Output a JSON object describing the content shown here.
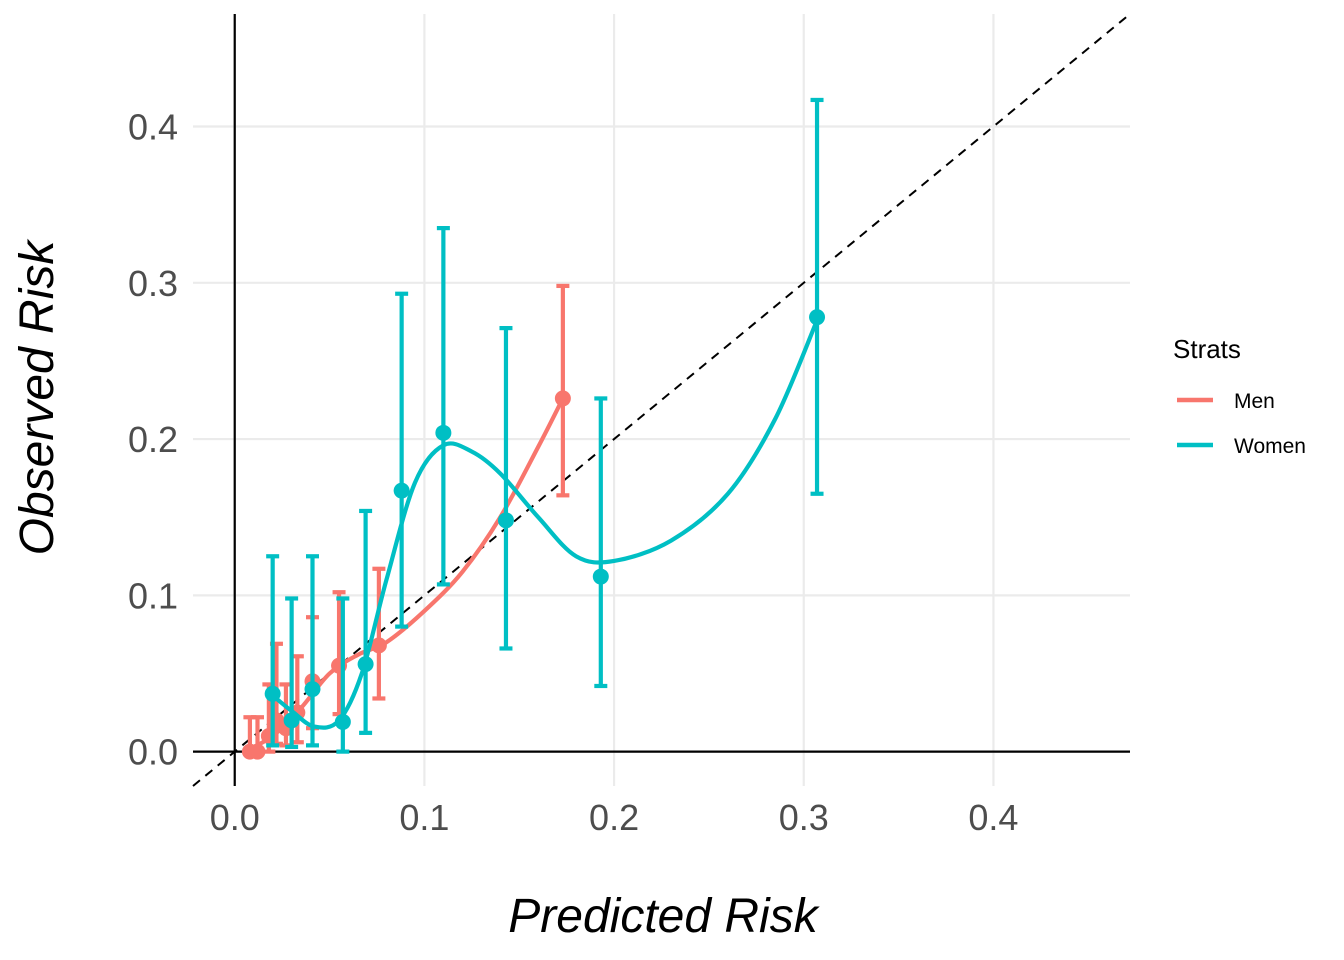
{
  "chart_data": {
    "type": "scatter",
    "title": "",
    "xlabel": "Predicted Risk",
    "ylabel": "Observed Risk",
    "xlim": [
      -0.022,
      0.472
    ],
    "ylim": [
      -0.022,
      0.472
    ],
    "xticks": [
      0.0,
      0.1,
      0.2,
      0.3,
      0.4
    ],
    "xtick_labels": [
      "0.0",
      "0.1",
      "0.2",
      "0.3",
      "0.4"
    ],
    "yticks": [
      0.0,
      0.1,
      0.2,
      0.3,
      0.4
    ],
    "ytick_labels": [
      "0.0",
      "0.1",
      "0.2",
      "0.3",
      "0.4"
    ],
    "reference_line": "y = x (dashed)",
    "grid": true,
    "legend": {
      "title": "Strats",
      "position": "right"
    },
    "series": [
      {
        "name": "Men",
        "color": "#F8766D",
        "points": [
          {
            "x": 0.008,
            "y": 0.0,
            "lo": 0.0,
            "hi": 0.022
          },
          {
            "x": 0.012,
            "y": 0.0,
            "lo": 0.0,
            "hi": 0.022
          },
          {
            "x": 0.018,
            "y": 0.01,
            "lo": 0.0,
            "hi": 0.043
          },
          {
            "x": 0.022,
            "y": 0.02,
            "lo": 0.005,
            "hi": 0.069
          },
          {
            "x": 0.027,
            "y": 0.015,
            "lo": 0.004,
            "hi": 0.043
          },
          {
            "x": 0.033,
            "y": 0.025,
            "lo": 0.006,
            "hi": 0.061
          },
          {
            "x": 0.041,
            "y": 0.045,
            "lo": 0.015,
            "hi": 0.086
          },
          {
            "x": 0.055,
            "y": 0.055,
            "lo": 0.024,
            "hi": 0.102
          },
          {
            "x": 0.076,
            "y": 0.068,
            "lo": 0.034,
            "hi": 0.117
          },
          {
            "x": 0.173,
            "y": 0.226,
            "lo": 0.164,
            "hi": 0.298
          }
        ],
        "smooth": [
          [
            0.005,
            0.0
          ],
          [
            0.02,
            0.01
          ],
          [
            0.035,
            0.028
          ],
          [
            0.05,
            0.05
          ],
          [
            0.065,
            0.062
          ],
          [
            0.08,
            0.07
          ],
          [
            0.1,
            0.09
          ],
          [
            0.12,
            0.115
          ],
          [
            0.14,
            0.15
          ],
          [
            0.16,
            0.195
          ],
          [
            0.173,
            0.226
          ]
        ]
      },
      {
        "name": "Women",
        "color": "#00BFC4",
        "points": [
          {
            "x": 0.02,
            "y": 0.037,
            "lo": 0.004,
            "hi": 0.125
          },
          {
            "x": 0.03,
            "y": 0.02,
            "lo": 0.003,
            "hi": 0.098
          },
          {
            "x": 0.041,
            "y": 0.04,
            "lo": 0.004,
            "hi": 0.125
          },
          {
            "x": 0.057,
            "y": 0.019,
            "lo": 0.0,
            "hi": 0.098
          },
          {
            "x": 0.069,
            "y": 0.056,
            "lo": 0.012,
            "hi": 0.154
          },
          {
            "x": 0.088,
            "y": 0.167,
            "lo": 0.08,
            "hi": 0.293
          },
          {
            "x": 0.11,
            "y": 0.204,
            "lo": 0.107,
            "hi": 0.335
          },
          {
            "x": 0.143,
            "y": 0.148,
            "lo": 0.066,
            "hi": 0.271
          },
          {
            "x": 0.193,
            "y": 0.112,
            "lo": 0.042,
            "hi": 0.226
          },
          {
            "x": 0.307,
            "y": 0.278,
            "lo": 0.165,
            "hi": 0.417
          }
        ],
        "smooth": [
          [
            0.018,
            0.038
          ],
          [
            0.03,
            0.026
          ],
          [
            0.042,
            0.016
          ],
          [
            0.055,
            0.02
          ],
          [
            0.067,
            0.05
          ],
          [
            0.08,
            0.11
          ],
          [
            0.095,
            0.172
          ],
          [
            0.11,
            0.196
          ],
          [
            0.125,
            0.192
          ],
          [
            0.14,
            0.178
          ],
          [
            0.16,
            0.15
          ],
          [
            0.18,
            0.125
          ],
          [
            0.2,
            0.122
          ],
          [
            0.23,
            0.135
          ],
          [
            0.26,
            0.165
          ],
          [
            0.285,
            0.213
          ],
          [
            0.307,
            0.276
          ]
        ]
      }
    ]
  }
}
